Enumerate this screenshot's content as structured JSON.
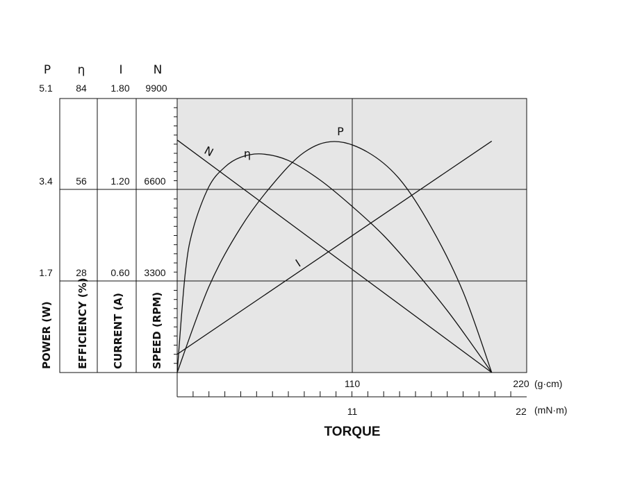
{
  "chart_data": {
    "type": "line",
    "title": "",
    "xlabel": "TORQUE",
    "x_axis_primary": {
      "unit": "(g·cm)",
      "ticks": [
        110,
        220
      ],
      "range": [
        0,
        220
      ]
    },
    "x_axis_secondary": {
      "unit": "(mN·m)",
      "ticks": [
        11,
        22
      ],
      "range": [
        0,
        22
      ]
    },
    "y_axes": [
      {
        "symbol": "P",
        "label": "POWER (W)",
        "ticks": [
          "5.1",
          "3.4",
          "1.7"
        ],
        "range": [
          0,
          5.1
        ]
      },
      {
        "symbol": "η",
        "label": "EFFICIENCY (%)",
        "ticks": [
          "84",
          "56",
          "28"
        ],
        "range": [
          0,
          84
        ]
      },
      {
        "symbol": "I",
        "label": "CURRENT (A)",
        "ticks": [
          "1.80",
          "1.20",
          "0.60"
        ],
        "range": [
          0,
          1.8
        ]
      },
      {
        "symbol": "N",
        "label": "SPEED (RPM)",
        "ticks": [
          "9900",
          "6600",
          "3300"
        ],
        "range": [
          0,
          9900
        ]
      }
    ],
    "series": [
      {
        "name": "N",
        "axis": "N",
        "x": [
          0,
          198
        ],
        "y": [
          8400,
          0
        ]
      },
      {
        "name": "η",
        "axis": "η",
        "x": [
          0,
          5,
          10,
          20,
          30,
          40,
          53,
          70,
          90,
          110,
          130,
          150,
          170,
          185,
          198
        ],
        "y": [
          0,
          30,
          44,
          57,
          63,
          66,
          67,
          65,
          59,
          51,
          42,
          31,
          19,
          9,
          0
        ]
      },
      {
        "name": "P",
        "axis": "P",
        "x": [
          0,
          20,
          40,
          60,
          80,
          99,
          120,
          140,
          160,
          180,
          198
        ],
        "y": [
          0,
          1.6,
          2.7,
          3.5,
          4.1,
          4.3,
          4.1,
          3.6,
          2.7,
          1.5,
          0
        ]
      },
      {
        "name": "I",
        "axis": "I",
        "x": [
          0,
          198
        ],
        "y": [
          0.12,
          1.52
        ]
      }
    ],
    "grid": true
  }
}
